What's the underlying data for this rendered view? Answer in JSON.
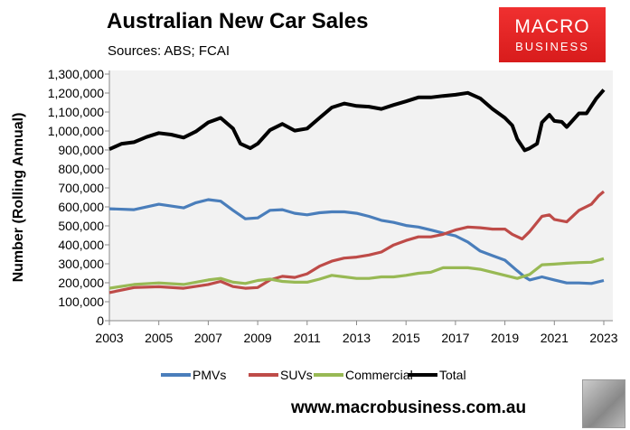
{
  "header": {
    "title": "Australian New Car Sales",
    "subtitle": "Sources: ABS; FCAI",
    "logo_line1": "MACRO",
    "logo_line2": "BUSINESS"
  },
  "footer": {
    "url": "www.macrobusiness.com.au"
  },
  "chart_data": {
    "type": "line",
    "title": "Australian New Car Sales",
    "xlabel": "",
    "ylabel": "Number (Rolling Annual)",
    "xlim": [
      2003,
      2023
    ],
    "ylim": [
      0,
      1300000
    ],
    "x_ticks": [
      "2003",
      "2005",
      "2007",
      "2009",
      "2011",
      "2013",
      "2015",
      "2017",
      "2019",
      "2021",
      "2023"
    ],
    "y_ticks": [
      "0",
      "100,000",
      "200,000",
      "300,000",
      "400,000",
      "500,000",
      "600,000",
      "700,000",
      "800,000",
      "900,000",
      "1,000,000",
      "1,100,000",
      "1,200,000",
      "1,300,000"
    ],
    "legend": "bottom",
    "grid": false,
    "background": "#f2f2f2",
    "series": [
      {
        "name": "PMVs",
        "color": "#4a7ebb",
        "x": [
          2003,
          2004,
          2005,
          2006,
          2006.5,
          2007,
          2007.5,
          2008,
          2008.5,
          2009,
          2009.5,
          2010,
          2010.5,
          2011,
          2011.5,
          2012,
          2012.5,
          2013,
          2013.5,
          2014,
          2014.5,
          2015,
          2015.5,
          2016,
          2016.5,
          2017,
          2017.5,
          2018,
          2018.5,
          2019,
          2019.5,
          2019.8,
          2020,
          2020.5,
          2021,
          2021.5,
          2022,
          2022.5,
          2023
        ],
        "values": [
          590000,
          585000,
          614000,
          595000,
          622000,
          638000,
          630000,
          582000,
          537000,
          542000,
          582000,
          585000,
          566000,
          558000,
          569000,
          574000,
          574000,
          566000,
          550000,
          529000,
          518000,
          502000,
          494000,
          478000,
          462000,
          447000,
          415000,
          367000,
          343000,
          319000,
          263000,
          231000,
          215000,
          231000,
          215000,
          199000,
          199000,
          196000,
          212000
        ]
      },
      {
        "name": "SUVs",
        "color": "#be4b48",
        "x": [
          2003,
          2004,
          2005,
          2006,
          2007,
          2007.5,
          2008,
          2008.5,
          2009,
          2009.5,
          2010,
          2010.5,
          2011,
          2011.5,
          2012,
          2012.5,
          2013,
          2013.5,
          2014,
          2014.5,
          2015,
          2015.5,
          2016,
          2016.5,
          2017,
          2017.5,
          2018,
          2018.5,
          2019,
          2019.3,
          2019.7,
          2020,
          2020.5,
          2020.8,
          2021,
          2021.5,
          2022,
          2022.5,
          2022.8,
          2023
        ],
        "values": [
          148000,
          175000,
          179000,
          171000,
          191000,
          207000,
          180000,
          171000,
          175000,
          215000,
          234000,
          228000,
          247000,
          287000,
          314000,
          330000,
          335000,
          346000,
          362000,
          399000,
          423000,
          442000,
          442000,
          455000,
          478000,
          494000,
          490000,
          483000,
          483000,
          455000,
          431000,
          470000,
          550000,
          558000,
          534000,
          521000,
          582000,
          614000,
          659000,
          681000
        ]
      },
      {
        "name": "Commercial",
        "color": "#98b954",
        "x": [
          2003,
          2004,
          2005,
          2006,
          2007,
          2007.5,
          2008,
          2008.5,
          2009,
          2009.5,
          2010,
          2010.5,
          2011,
          2011.5,
          2012,
          2012.5,
          2013,
          2013.5,
          2014,
          2014.5,
          2015,
          2015.5,
          2016,
          2016.5,
          2017,
          2017.5,
          2018,
          2018.5,
          2019,
          2019.5,
          2020,
          2020.5,
          2021,
          2021.5,
          2022,
          2022.5,
          2023
        ],
        "values": [
          171000,
          191000,
          199000,
          191000,
          215000,
          223000,
          203000,
          196000,
          212000,
          219000,
          207000,
          203000,
          203000,
          219000,
          239000,
          231000,
          223000,
          223000,
          231000,
          231000,
          239000,
          250000,
          255000,
          279000,
          279000,
          279000,
          271000,
          255000,
          239000,
          223000,
          244000,
          295000,
          298000,
          303000,
          306000,
          308000,
          327000
        ]
      },
      {
        "name": "Total",
        "color": "#000000",
        "x": [
          2003,
          2003.5,
          2004,
          2004.5,
          2005,
          2005.5,
          2006,
          2006.5,
          2007,
          2007.5,
          2008,
          2008.3,
          2008.7,
          2009,
          2009.5,
          2010,
          2010.5,
          2011,
          2011.5,
          2012,
          2012.5,
          2013,
          2013.5,
          2014,
          2014.5,
          2015,
          2015.5,
          2016,
          2016.5,
          2017,
          2017.5,
          2018,
          2018.5,
          2019,
          2019.3,
          2019.5,
          2019.8,
          2020,
          2020.3,
          2020.5,
          2020.8,
          2021,
          2021.3,
          2021.5,
          2022,
          2022.3,
          2022.7,
          2023
        ],
        "values": [
          904000,
          933000,
          941000,
          968000,
          989000,
          981000,
          965000,
          997000,
          1045000,
          1069000,
          1013000,
          933000,
          909000,
          933000,
          1005000,
          1037000,
          1002000,
          1013000,
          1069000,
          1124000,
          1145000,
          1132000,
          1128000,
          1116000,
          1137000,
          1156000,
          1177000,
          1177000,
          1185000,
          1191000,
          1201000,
          1172000,
          1116000,
          1069000,
          1029000,
          957000,
          898000,
          909000,
          933000,
          1045000,
          1085000,
          1053000,
          1048000,
          1021000,
          1093000,
          1093000,
          1172000,
          1217000
        ]
      }
    ]
  }
}
